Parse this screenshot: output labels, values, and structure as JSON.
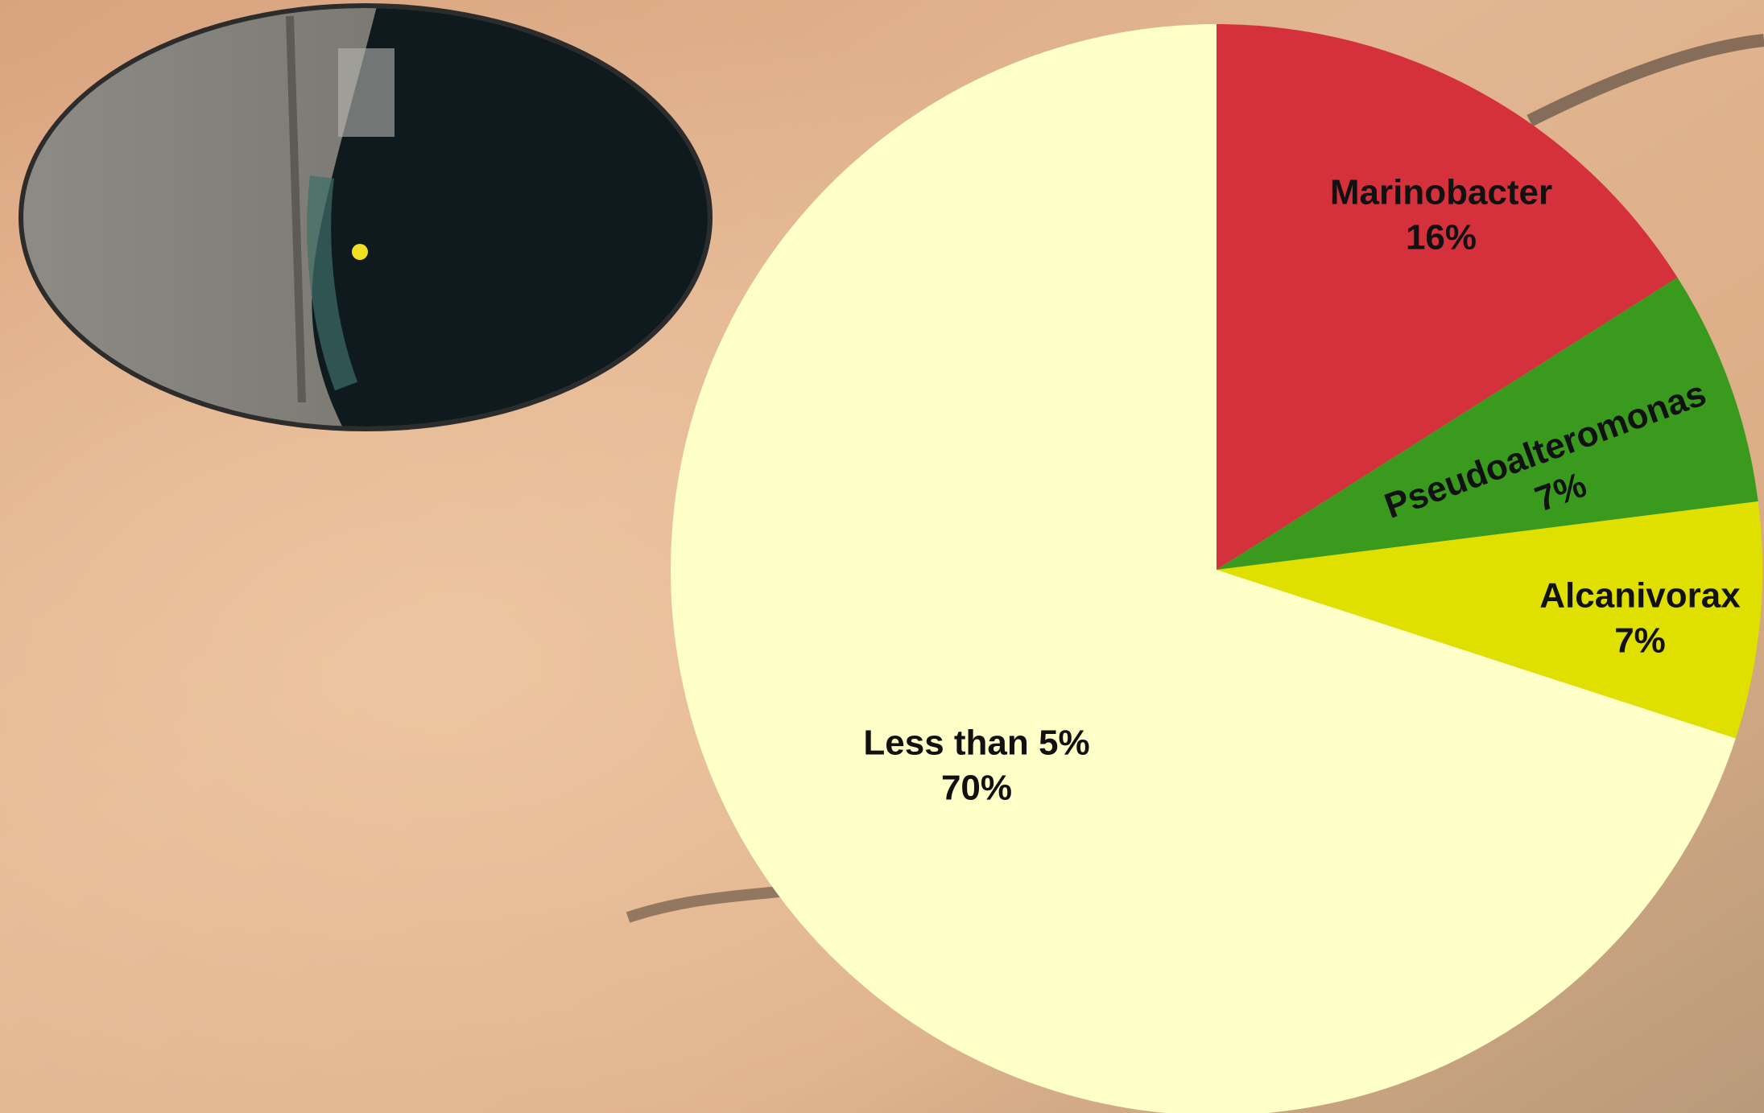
{
  "chart_data": {
    "type": "pie",
    "categories": [
      "Marinobacter",
      "Pseudoalteromonas",
      "Alcanivorax",
      "Less than 5%"
    ],
    "values": [
      16,
      7,
      7,
      70
    ],
    "value_labels": [
      "16%",
      "7%",
      "7%",
      "70%"
    ],
    "colors": [
      "#d4313d",
      "#3a9a1e",
      "#e0e000",
      "#ffffc8"
    ]
  }
}
